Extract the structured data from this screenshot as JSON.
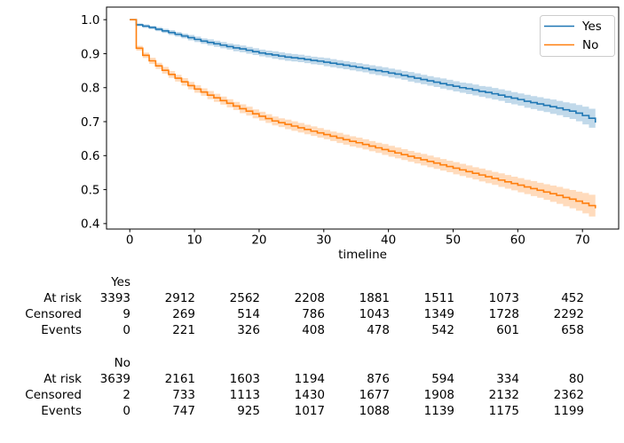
{
  "figure": {
    "background": "#ffffff",
    "text_color": "#000000"
  },
  "chart_data": {
    "type": "line",
    "subtype": "kaplan-meier-step",
    "title": "",
    "xlabel": "timeline",
    "ylabel": "",
    "grid": false,
    "legend_position": "upper right",
    "xlim": [
      -3.6,
      75.6
    ],
    "ylim": [
      0.384,
      1.037
    ],
    "xtick_values": [
      0,
      10,
      20,
      30,
      40,
      50,
      60,
      70
    ],
    "xtick_labels": [
      "0",
      "10",
      "20",
      "30",
      "40",
      "50",
      "60",
      "70"
    ],
    "ytick_values": [
      1.0,
      0.9,
      0.8,
      0.7,
      0.6,
      0.5,
      0.4
    ],
    "ytick_labels": [
      "1.0",
      "0.9",
      "0.8",
      "0.7",
      "0.6",
      "0.5",
      "0.4"
    ],
    "ci_alpha": 0.28,
    "x": [
      0,
      1,
      2,
      3,
      4,
      5,
      6,
      7,
      8,
      9,
      10,
      11,
      12,
      13,
      14,
      15,
      16,
      17,
      18,
      19,
      20,
      21,
      22,
      23,
      24,
      25,
      26,
      27,
      28,
      29,
      30,
      31,
      32,
      33,
      34,
      35,
      36,
      37,
      38,
      39,
      40,
      41,
      42,
      43,
      44,
      45,
      46,
      47,
      48,
      49,
      50,
      51,
      52,
      53,
      54,
      55,
      56,
      57,
      58,
      59,
      60,
      61,
      62,
      63,
      64,
      65,
      66,
      67,
      68,
      69,
      70,
      71,
      72
    ],
    "series": [
      {
        "name": "Yes",
        "color": "#1f77b4",
        "values": [
          1.0,
          0.985,
          0.981,
          0.977,
          0.972,
          0.967,
          0.962,
          0.957,
          0.952,
          0.947,
          0.942,
          0.937,
          0.933,
          0.929,
          0.925,
          0.921,
          0.917,
          0.914,
          0.91,
          0.906,
          0.902,
          0.899,
          0.896,
          0.893,
          0.89,
          0.888,
          0.886,
          0.883,
          0.88,
          0.878,
          0.875,
          0.872,
          0.869,
          0.866,
          0.863,
          0.86,
          0.857,
          0.853,
          0.85,
          0.847,
          0.843,
          0.84,
          0.836,
          0.832,
          0.828,
          0.824,
          0.82,
          0.816,
          0.812,
          0.808,
          0.804,
          0.8,
          0.797,
          0.793,
          0.789,
          0.786,
          0.782,
          0.778,
          0.773,
          0.769,
          0.765,
          0.76,
          0.756,
          0.752,
          0.748,
          0.744,
          0.74,
          0.735,
          0.731,
          0.725,
          0.718,
          0.71,
          0.697
        ],
        "ci": [
          0.0,
          0.004,
          0.005,
          0.005,
          0.006,
          0.006,
          0.007,
          0.007,
          0.007,
          0.008,
          0.008,
          0.008,
          0.009,
          0.009,
          0.009,
          0.009,
          0.01,
          0.01,
          0.01,
          0.01,
          0.01,
          0.01,
          0.011,
          0.011,
          0.011,
          0.011,
          0.011,
          0.011,
          0.011,
          0.011,
          0.012,
          0.012,
          0.012,
          0.012,
          0.012,
          0.012,
          0.012,
          0.013,
          0.013,
          0.013,
          0.013,
          0.013,
          0.013,
          0.014,
          0.014,
          0.014,
          0.014,
          0.014,
          0.015,
          0.015,
          0.015,
          0.015,
          0.016,
          0.016,
          0.016,
          0.017,
          0.017,
          0.017,
          0.018,
          0.018,
          0.018,
          0.019,
          0.019,
          0.02,
          0.02,
          0.021,
          0.021,
          0.022,
          0.023,
          0.024,
          0.026,
          0.028,
          0.032
        ]
      },
      {
        "name": "No",
        "color": "#ff7f0e",
        "values": [
          1.0,
          0.916,
          0.895,
          0.879,
          0.864,
          0.851,
          0.839,
          0.828,
          0.817,
          0.806,
          0.796,
          0.787,
          0.778,
          0.77,
          0.762,
          0.754,
          0.746,
          0.738,
          0.731,
          0.723,
          0.716,
          0.709,
          0.702,
          0.697,
          0.692,
          0.687,
          0.682,
          0.677,
          0.672,
          0.667,
          0.662,
          0.657,
          0.652,
          0.647,
          0.642,
          0.638,
          0.633,
          0.628,
          0.623,
          0.618,
          0.613,
          0.608,
          0.603,
          0.598,
          0.593,
          0.588,
          0.583,
          0.578,
          0.573,
          0.568,
          0.563,
          0.558,
          0.553,
          0.548,
          0.543,
          0.538,
          0.533,
          0.528,
          0.523,
          0.518,
          0.513,
          0.508,
          0.503,
          0.498,
          0.493,
          0.488,
          0.483,
          0.477,
          0.472,
          0.466,
          0.46,
          0.453,
          0.445
        ],
        "ci": [
          0.0,
          0.007,
          0.008,
          0.009,
          0.009,
          0.01,
          0.01,
          0.01,
          0.011,
          0.011,
          0.011,
          0.011,
          0.012,
          0.012,
          0.012,
          0.012,
          0.012,
          0.013,
          0.013,
          0.013,
          0.013,
          0.013,
          0.013,
          0.013,
          0.014,
          0.014,
          0.014,
          0.014,
          0.014,
          0.014,
          0.014,
          0.014,
          0.015,
          0.015,
          0.015,
          0.015,
          0.015,
          0.015,
          0.015,
          0.016,
          0.016,
          0.016,
          0.016,
          0.016,
          0.016,
          0.017,
          0.017,
          0.017,
          0.017,
          0.017,
          0.018,
          0.018,
          0.018,
          0.018,
          0.019,
          0.019,
          0.019,
          0.02,
          0.02,
          0.02,
          0.021,
          0.021,
          0.022,
          0.022,
          0.023,
          0.024,
          0.025,
          0.026,
          0.027,
          0.028,
          0.03,
          0.032,
          0.036
        ]
      }
    ],
    "legend": {
      "entries": [
        "Yes",
        "No"
      ],
      "border_color": "#cccccc"
    }
  },
  "risk_table": {
    "groups": [
      {
        "name": "Yes",
        "rows": [
          {
            "label": "At risk",
            "values": [
              3393,
              2912,
              2562,
              2208,
              1881,
              1511,
              1073,
              452
            ]
          },
          {
            "label": "Censored",
            "values": [
              9,
              269,
              514,
              786,
              1043,
              1349,
              1728,
              2292
            ]
          },
          {
            "label": "Events",
            "values": [
              0,
              221,
              326,
              408,
              478,
              542,
              601,
              658
            ]
          }
        ]
      },
      {
        "name": "No",
        "rows": [
          {
            "label": "At risk",
            "values": [
              3639,
              2161,
              1603,
              1194,
              876,
              594,
              334,
              80
            ]
          },
          {
            "label": "Censored",
            "values": [
              2,
              733,
              1113,
              1430,
              1677,
              1908,
              2132,
              2362
            ]
          },
          {
            "label": "Events",
            "values": [
              0,
              747,
              925,
              1017,
              1088,
              1139,
              1175,
              1199
            ]
          }
        ]
      }
    ]
  }
}
